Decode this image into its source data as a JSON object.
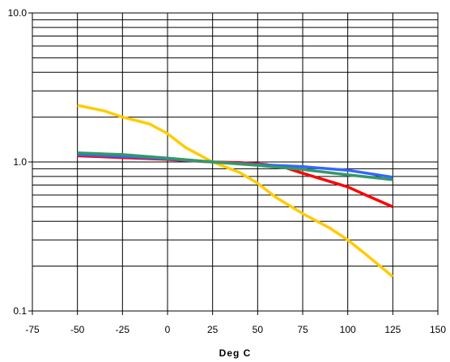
{
  "chart_data": {
    "type": "line",
    "title": "",
    "xlabel": "Deg C",
    "ylabel": "",
    "xlim": [
      -75,
      150
    ],
    "ylim": [
      0.1,
      10.0
    ],
    "y_scale": "log",
    "grid": true,
    "x_ticks": [
      -75,
      -50,
      -25,
      0,
      25,
      50,
      75,
      100,
      125,
      150
    ],
    "x_tick_labels": [
      "-75",
      "-50",
      "-25",
      "0",
      "25",
      "50",
      "75",
      "100",
      "125",
      "150"
    ],
    "y_ticks": [
      0.1,
      1.0,
      10.0
    ],
    "y_tick_labels": [
      "0.1",
      "1.0",
      "10.0"
    ],
    "series": [
      {
        "color": "#FFCC00",
        "x": [
          -50,
          -35,
          -25,
          -10,
          0,
          10,
          25,
          40,
          50,
          60,
          75,
          90,
          100,
          110,
          125
        ],
        "y": [
          2.4,
          2.2,
          2.0,
          1.8,
          1.55,
          1.25,
          1.0,
          0.85,
          0.72,
          0.58,
          0.45,
          0.36,
          0.3,
          0.24,
          0.17
        ]
      },
      {
        "color": "#FF0000",
        "x": [
          -50,
          -25,
          0,
          25,
          40,
          55,
          65,
          75,
          90,
          100,
          110,
          125
        ],
        "y": [
          1.1,
          1.07,
          1.04,
          1.0,
          0.99,
          0.96,
          0.92,
          0.84,
          0.74,
          0.68,
          0.6,
          0.5
        ]
      },
      {
        "color": "#3366FF",
        "x": [
          -50,
          -25,
          0,
          25,
          50,
          75,
          100,
          125
        ],
        "y": [
          1.12,
          1.09,
          1.05,
          1.0,
          0.96,
          0.93,
          0.88,
          0.79
        ]
      },
      {
        "color": "#339966",
        "x": [
          -50,
          -25,
          0,
          25,
          50,
          75,
          100,
          125
        ],
        "y": [
          1.15,
          1.12,
          1.06,
          1.0,
          0.95,
          0.89,
          0.82,
          0.76
        ]
      }
    ]
  }
}
